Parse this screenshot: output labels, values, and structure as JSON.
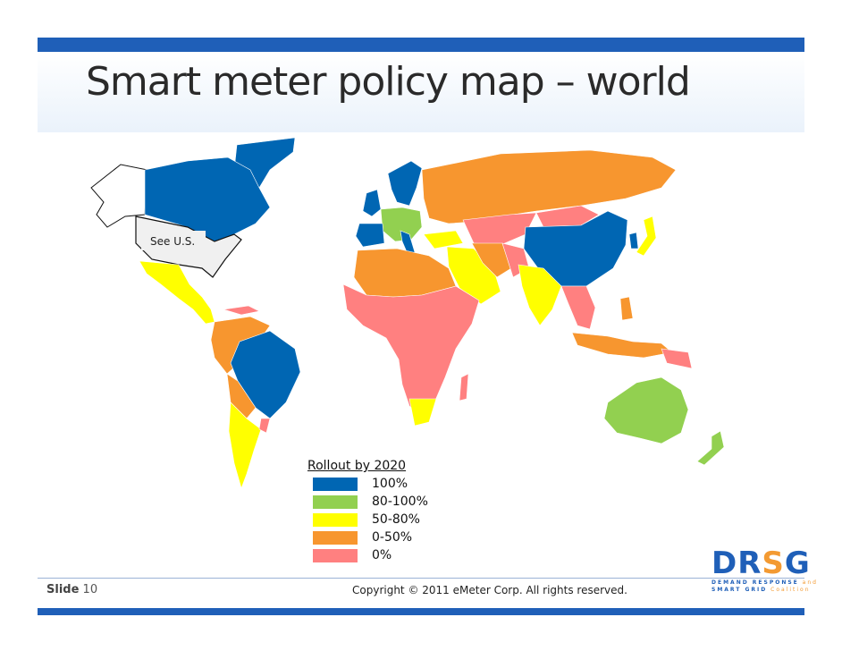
{
  "title": "Smart meter policy map – world",
  "map_note": "See U.S.",
  "colors": {
    "c100": "#0066b3",
    "c80_100": "#92d050",
    "c50_80": "#ffff00",
    "c0_50": "#f7962f",
    "c0": "#ff8080",
    "us": "#f0f0f0"
  },
  "legend": {
    "title": "Rollout by 2020",
    "items": [
      {
        "label": "100%",
        "color": "#0066b3"
      },
      {
        "label": "80-100%",
        "color": "#92d050"
      },
      {
        "label": "50-80%",
        "color": "#ffff00"
      },
      {
        "label": "0-50%",
        "color": "#f7962f"
      },
      {
        "label": "0%",
        "color": "#ff8080"
      }
    ]
  },
  "footer": {
    "slide_word": "Slide",
    "slide_number": "10",
    "copyright": "Copyright © 2011 eMeter Corp. All rights reserved."
  },
  "logo": {
    "name": "DRSG",
    "line1a": "DEMAND RESPONSE",
    "line1b": " and",
    "line2a": "SMART GRID",
    "line2b": " Coalition"
  }
}
